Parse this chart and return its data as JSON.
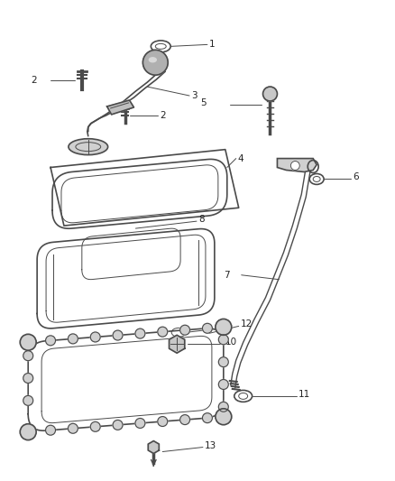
{
  "bg_color": "#ffffff",
  "line_color": "#4a4a4a",
  "label_color": "#222222",
  "lw_main": 1.2,
  "lw_thin": 0.7,
  "fontsize": 7.5
}
